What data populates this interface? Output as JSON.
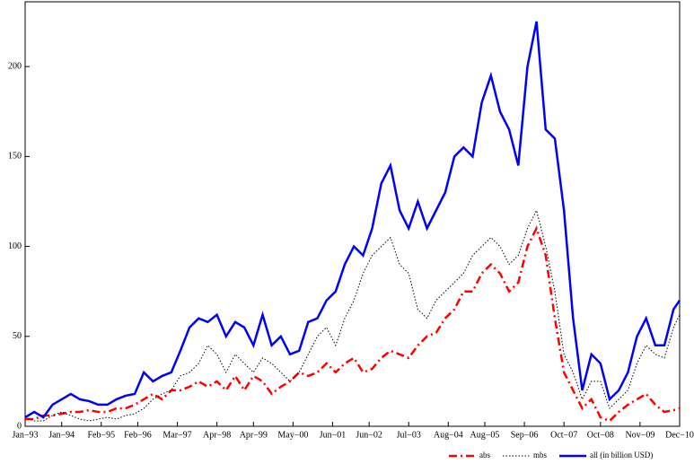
{
  "chart_data": {
    "type": "line",
    "x": [
      0,
      3,
      6,
      9,
      12,
      15,
      18,
      21,
      24,
      27,
      30,
      33,
      36,
      39,
      42,
      45,
      48,
      51,
      54,
      57,
      60,
      63,
      66,
      69,
      72,
      75,
      78,
      81,
      84,
      87,
      90,
      93,
      96,
      99,
      102,
      105,
      108,
      111,
      114,
      117,
      120,
      123,
      126,
      129,
      132,
      135,
      138,
      141,
      144,
      147,
      150,
      153,
      156,
      159,
      162,
      165,
      168,
      171,
      174,
      177,
      180,
      183,
      186,
      189,
      192,
      195,
      198,
      201,
      204,
      207,
      210,
      213,
      215
    ],
    "xlim": [
      0,
      215
    ],
    "xticks": [
      {
        "value": 0,
        "label": "Jan−93"
      },
      {
        "value": 12,
        "label": "Jan−94"
      },
      {
        "value": 25,
        "label": "Feb−95"
      },
      {
        "value": 37,
        "label": "Feb−96"
      },
      {
        "value": 50,
        "label": "Mar−97"
      },
      {
        "value": 63,
        "label": "Apr−98"
      },
      {
        "value": 75,
        "label": "Apr−99"
      },
      {
        "value": 88,
        "label": "May−00"
      },
      {
        "value": 101,
        "label": "Jun−01"
      },
      {
        "value": 113,
        "label": "Jun−02"
      },
      {
        "value": 126,
        "label": "Jul−03"
      },
      {
        "value": 139,
        "label": "Aug−04"
      },
      {
        "value": 151,
        "label": "Aug−05"
      },
      {
        "value": 164,
        "label": "Sep−06"
      },
      {
        "value": 177,
        "label": "Oct−07"
      },
      {
        "value": 189,
        "label": "Oct−08"
      },
      {
        "value": 202,
        "label": "Nov−09"
      },
      {
        "value": 215,
        "label": "Dec−10"
      }
    ],
    "ylim": [
      0,
      236
    ],
    "yticks": [
      0,
      50,
      100,
      150,
      200
    ],
    "series": [
      {
        "name": "abs",
        "color": "#ff0000",
        "linestyle": "dashdot",
        "width": 2.5,
        "values": [
          4,
          4,
          6,
          6,
          7,
          8,
          8,
          9,
          8,
          8,
          10,
          10,
          12,
          15,
          18,
          15,
          20,
          20,
          22,
          25,
          22,
          25,
          20,
          28,
          20,
          28,
          25,
          18,
          22,
          25,
          30,
          28,
          30,
          35,
          30,
          35,
          38,
          30,
          32,
          38,
          42,
          40,
          38,
          45,
          50,
          52,
          60,
          65,
          75,
          75,
          85,
          90,
          85,
          75,
          80,
          100,
          110,
          95,
          60,
          30,
          20,
          10,
          15,
          5,
          3,
          8,
          12,
          15,
          18,
          12,
          8,
          9,
          10
        ]
      },
      {
        "name": "mbs",
        "color": "#000000",
        "linestyle": "dotted",
        "width": 1,
        "values": [
          5,
          3,
          3,
          6,
          8,
          6,
          4,
          3,
          4,
          5,
          4,
          6,
          7,
          10,
          15,
          18,
          20,
          28,
          30,
          35,
          45,
          40,
          30,
          40,
          35,
          30,
          38,
          35,
          30,
          25,
          30,
          40,
          50,
          55,
          45,
          60,
          70,
          85,
          95,
          100,
          105,
          90,
          85,
          65,
          60,
          70,
          75,
          80,
          85,
          95,
          100,
          105,
          100,
          90,
          95,
          110,
          120,
          100,
          75,
          40,
          30,
          15,
          25,
          25,
          10,
          15,
          20,
          35,
          45,
          40,
          38,
          55,
          62
        ]
      },
      {
        "name": "all (in billion USD)",
        "color": "#0000ff",
        "linestyle": "solid",
        "width": 2.5,
        "values": [
          5,
          8,
          5,
          12,
          15,
          18,
          15,
          14,
          12,
          12,
          15,
          17,
          18,
          30,
          25,
          28,
          30,
          42,
          55,
          60,
          58,
          62,
          50,
          58,
          55,
          45,
          62,
          45,
          50,
          40,
          42,
          58,
          60,
          70,
          75,
          90,
          100,
          95,
          110,
          135,
          145,
          120,
          110,
          125,
          110,
          120,
          130,
          150,
          155,
          150,
          180,
          195,
          175,
          165,
          145,
          200,
          225,
          165,
          160,
          120,
          60,
          20,
          40,
          35,
          15,
          20,
          30,
          50,
          60,
          45,
          45,
          65,
          70
        ]
      }
    ]
  }
}
